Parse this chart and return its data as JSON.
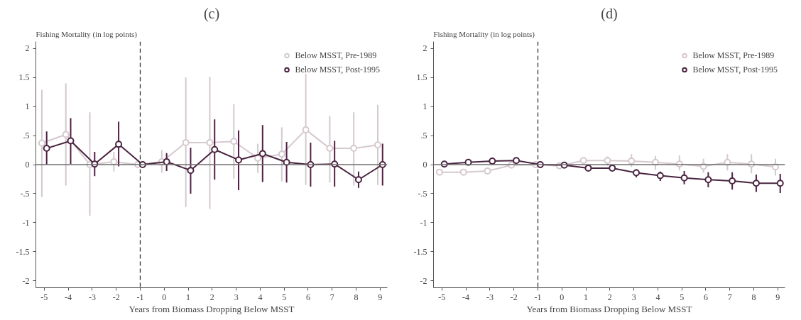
{
  "chart_data": [
    {
      "type": "line",
      "title": "(c)",
      "ylabel": "Fishing Mortality (in log points)",
      "xlabel": "Years from Biomass Dropping Below MSST",
      "xlim": [
        -5.35,
        9.3
      ],
      "xticks": [
        -5,
        -4,
        -3,
        -2,
        -1,
        0,
        1,
        2,
        3,
        4,
        5,
        6,
        7,
        8,
        9
      ],
      "ylim": [
        -2.12,
        2.12
      ],
      "yticks": [
        {
          "value": -2,
          "label": "-2"
        },
        {
          "value": -1.5,
          "label": "-1.5"
        },
        {
          "value": -1,
          "label": "-1"
        },
        {
          "value": -0.5,
          "label": "-.5"
        },
        {
          "value": 0,
          "label": "0"
        },
        {
          "value": 0.5,
          "label": ".5"
        },
        {
          "value": 1,
          "label": "1"
        },
        {
          "value": 1.5,
          "label": "1.5"
        },
        {
          "value": 2,
          "label": "2"
        }
      ],
      "grid": false,
      "legend": "top right",
      "marker": "circle",
      "ref_lines": [
        {
          "axis": "x",
          "value": -1,
          "color": "#333333",
          "line_style": "dashed"
        },
        {
          "axis": "y",
          "value": 0,
          "color": "#6e6e6e",
          "line_style": "solid"
        }
      ],
      "series": [
        {
          "name": "Below MSST, Pre-1989",
          "color": "#d6c8cf",
          "x": [
            -5.1,
            -4.1,
            -3.1,
            -2.1,
            -1.1,
            -0.1,
            0.9,
            1.9,
            2.9,
            3.9,
            4.9,
            5.9,
            6.9,
            7.9,
            8.9
          ],
          "values": [
            0.37,
            0.52,
            0.0,
            0.05,
            0.0,
            0.05,
            0.38,
            0.38,
            0.4,
            0.11,
            0.18,
            0.6,
            0.28,
            0.28,
            0.34
          ],
          "errors": [
            [
              -0.56,
              1.29
            ],
            [
              -0.36,
              1.4
            ],
            [
              -0.88,
              0.9
            ],
            [
              -0.12,
              0.22
            ],
            null,
            [
              -0.14,
              0.25
            ],
            [
              -0.73,
              1.5
            ],
            [
              -0.76,
              1.51
            ],
            [
              -0.24,
              1.04
            ],
            [
              -0.14,
              0.36
            ],
            [
              -0.29,
              0.64
            ],
            [
              -0.35,
              1.56
            ],
            [
              -0.31,
              0.84
            ],
            [
              -0.36,
              0.9
            ],
            [
              -0.35,
              1.03
            ]
          ]
        },
        {
          "name": "Below MSST, Post-1995",
          "color": "#4a2440",
          "x": [
            -4.9,
            -3.9,
            -2.9,
            -1.9,
            -0.9,
            0.1,
            1.1,
            2.1,
            3.1,
            4.1,
            5.1,
            6.1,
            7.1,
            8.1,
            9.1
          ],
          "values": [
            0.28,
            0.41,
            0.01,
            0.35,
            0.0,
            0.05,
            -0.1,
            0.26,
            0.08,
            0.19,
            0.04,
            0.0,
            0.01,
            -0.26,
            0.0
          ],
          "errors": [
            [
              0.0,
              0.57
            ],
            [
              0.01,
              0.8
            ],
            [
              -0.2,
              0.22
            ],
            [
              -0.03,
              0.74
            ],
            null,
            [
              -0.11,
              0.2
            ],
            [
              -0.5,
              0.29
            ],
            [
              -0.26,
              0.78
            ],
            [
              -0.44,
              0.59
            ],
            [
              -0.3,
              0.68
            ],
            [
              -0.31,
              0.39
            ],
            [
              -0.38,
              0.38
            ],
            [
              -0.38,
              0.41
            ],
            [
              -0.4,
              -0.12
            ],
            [
              -0.36,
              0.36
            ]
          ]
        }
      ]
    },
    {
      "type": "line",
      "title": "(d)",
      "ylabel": "Fishing Mortality (in log points)",
      "xlabel": "Years from Biomass Dropping Below MSST",
      "xlim": [
        -5.35,
        9.3
      ],
      "xticks": [
        -5,
        -4,
        -3,
        -2,
        -1,
        0,
        1,
        2,
        3,
        4,
        5,
        6,
        7,
        8,
        9
      ],
      "ylim": [
        -2.12,
        2.12
      ],
      "yticks": [
        {
          "value": -2,
          "label": "-2"
        },
        {
          "value": -1.5,
          "label": "-1.5"
        },
        {
          "value": -1,
          "label": "-1"
        },
        {
          "value": -0.5,
          "label": "-.5"
        },
        {
          "value": 0,
          "label": "0"
        },
        {
          "value": 0.5,
          "label": ".5"
        },
        {
          "value": 1,
          "label": "1"
        },
        {
          "value": 1.5,
          "label": "1.5"
        },
        {
          "value": 2,
          "label": "2"
        }
      ],
      "grid": false,
      "legend": "top right",
      "marker": "circle",
      "ref_lines": [
        {
          "axis": "x",
          "value": -1,
          "color": "#333333",
          "line_style": "dashed"
        },
        {
          "axis": "y",
          "value": 0,
          "color": "#6e6e6e",
          "line_style": "solid"
        }
      ],
      "series": [
        {
          "name": "Below MSST, Pre-1989",
          "color": "#d6c8cf",
          "x": [
            -5.1,
            -4.1,
            -3.1,
            -2.1,
            -1.1,
            -0.1,
            0.9,
            1.9,
            2.9,
            3.9,
            4.9,
            5.9,
            6.9,
            7.9,
            8.9
          ],
          "values": [
            -0.13,
            -0.13,
            -0.11,
            -0.01,
            0.0,
            -0.02,
            0.07,
            0.07,
            0.06,
            0.04,
            0.01,
            -0.03,
            0.04,
            0.01,
            -0.04
          ],
          "errors": [
            null,
            null,
            null,
            null,
            null,
            null,
            null,
            [
              -0.02,
              0.14
            ],
            [
              -0.04,
              0.18
            ],
            [
              -0.09,
              0.15
            ],
            [
              -0.1,
              0.16
            ],
            [
              -0.14,
              0.1
            ],
            [
              -0.1,
              0.18
            ],
            [
              -0.15,
              0.18
            ],
            [
              -0.19,
              0.1
            ]
          ]
        },
        {
          "name": "Below MSST, Post-1995",
          "color": "#4a2440",
          "x": [
            -4.9,
            -3.9,
            -2.9,
            -1.9,
            -0.9,
            0.1,
            1.1,
            2.1,
            3.1,
            4.1,
            5.1,
            6.1,
            7.1,
            8.1,
            9.1
          ],
          "values": [
            0.01,
            0.04,
            0.06,
            0.07,
            0.0,
            -0.01,
            -0.06,
            -0.06,
            -0.14,
            -0.19,
            -0.23,
            -0.26,
            -0.28,
            -0.32,
            -0.32
          ],
          "errors": [
            null,
            null,
            null,
            null,
            null,
            null,
            null,
            [
              -0.11,
              -0.01
            ],
            [
              -0.22,
              -0.08
            ],
            [
              -0.28,
              -0.12
            ],
            [
              -0.34,
              -0.11
            ],
            [
              -0.39,
              -0.13
            ],
            [
              -0.43,
              -0.13
            ],
            [
              -0.47,
              -0.17
            ],
            [
              -0.49,
              -0.16
            ]
          ]
        }
      ]
    }
  ]
}
